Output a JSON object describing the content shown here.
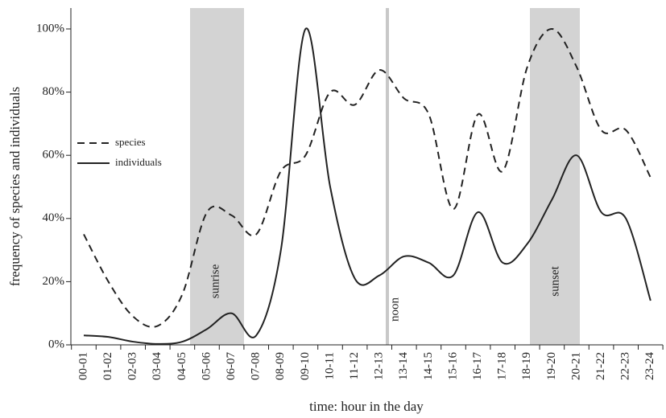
{
  "chart_data": {
    "type": "line",
    "y_label": "frequency of species and individuals",
    "x_label": "time: hour in the day",
    "categories": [
      "00-01",
      "01-02",
      "02-03",
      "03-04",
      "04-05",
      "05-06",
      "06-07",
      "07-08",
      "08-09",
      "09-10",
      "10-11",
      "11-12",
      "12-13",
      "13-14",
      "14-15",
      "15-16",
      "16-17",
      "17-18",
      "18-19",
      "19-20",
      "20-21",
      "21-22",
      "22-23",
      "23-24"
    ],
    "series": [
      {
        "name": "species",
        "color": "#222222",
        "dash": true,
        "values": [
          35,
          20,
          9,
          6,
          16,
          42,
          41,
          35,
          55,
          60,
          80,
          76,
          87,
          78,
          73,
          43,
          73,
          55,
          88,
          100,
          88,
          68,
          68,
          53
        ]
      },
      {
        "name": "individuals",
        "color": "#222222",
        "dash": false,
        "values": [
          3,
          2.5,
          1,
          0.3,
          1,
          5,
          10,
          3,
          30,
          100,
          50,
          21,
          22,
          28,
          26,
          22,
          42,
          26,
          32,
          46,
          60,
          42,
          40,
          14
        ]
      }
    ],
    "annotations": [
      "sunrise",
      "noon",
      "sunset"
    ],
    "ylim": [
      0,
      100
    ],
    "yticks": [
      {
        "value": 0,
        "label": "0%"
      },
      {
        "value": 20,
        "label": "20%"
      },
      {
        "value": 40,
        "label": "40%"
      },
      {
        "value": 60,
        "label": "60%"
      },
      {
        "value": 80,
        "label": "80%"
      },
      {
        "value": 100,
        "label": "100%"
      }
    ],
    "grid": false,
    "legend": "left"
  }
}
